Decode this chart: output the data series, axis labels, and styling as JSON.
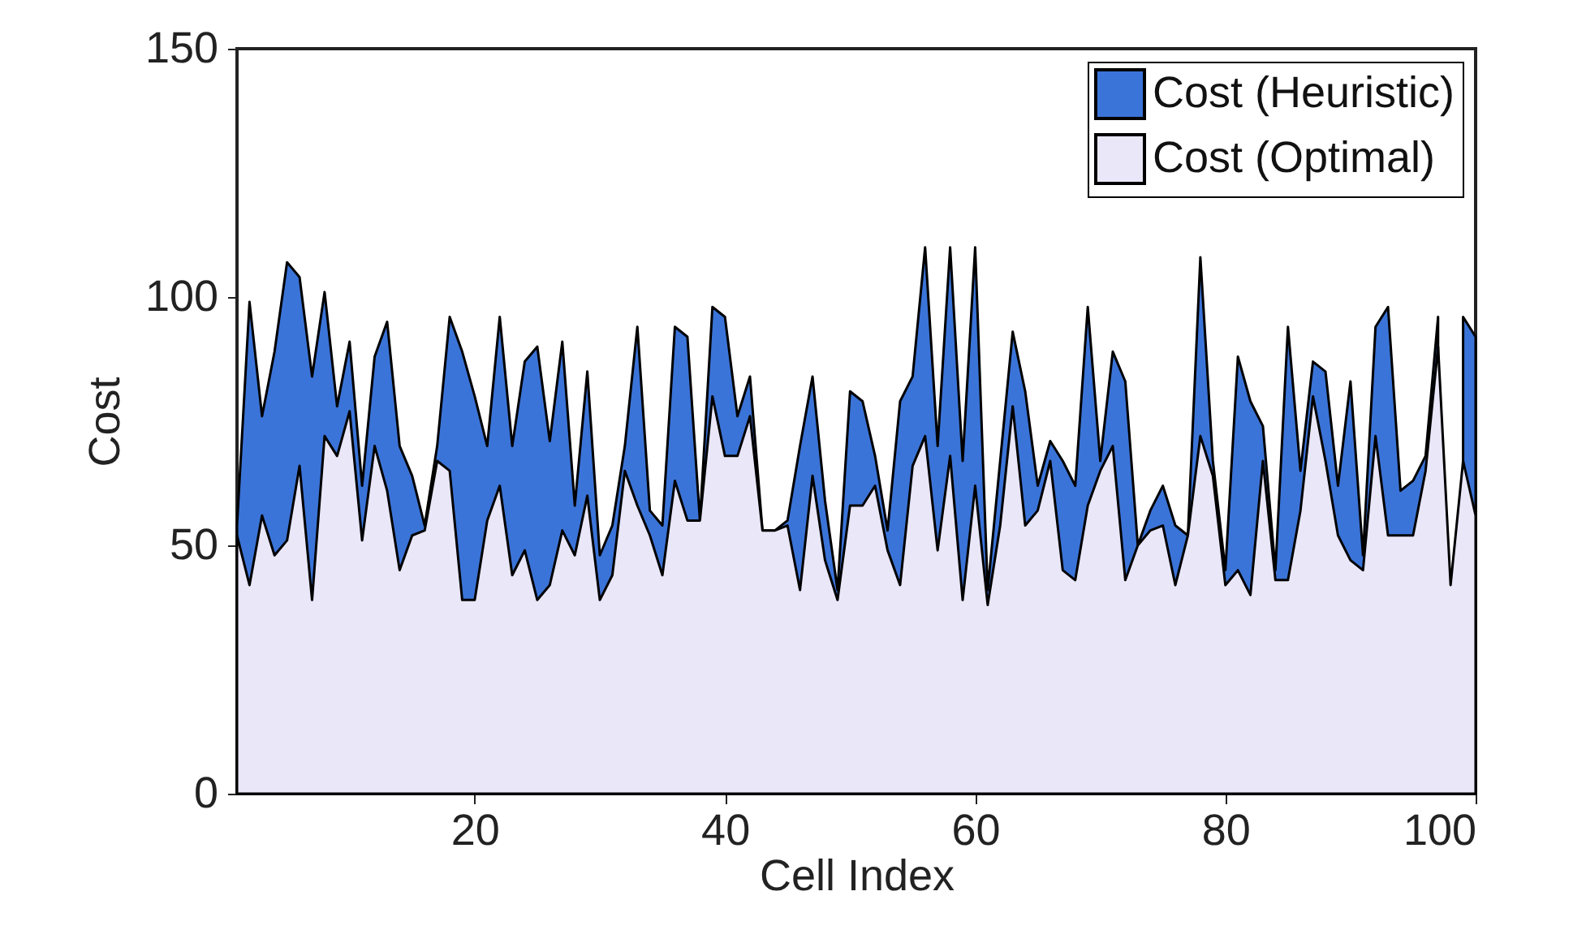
{
  "chart_data": {
    "type": "area",
    "xlabel": "Cell Index",
    "ylabel": "Cost",
    "x": [
      1,
      2,
      3,
      4,
      5,
      6,
      7,
      8,
      9,
      10,
      11,
      12,
      13,
      14,
      15,
      16,
      17,
      18,
      19,
      20,
      21,
      22,
      23,
      24,
      25,
      26,
      27,
      28,
      29,
      30,
      31,
      32,
      33,
      34,
      35,
      36,
      37,
      38,
      39,
      40,
      41,
      42,
      43,
      44,
      45,
      46,
      47,
      48,
      49,
      50,
      51,
      52,
      53,
      54,
      55,
      56,
      57,
      58,
      59,
      60,
      61,
      62,
      63,
      64,
      65,
      66,
      67,
      68,
      69,
      70,
      71,
      72,
      73,
      74,
      75,
      76,
      77,
      78,
      79,
      80,
      81,
      82,
      83,
      84,
      85,
      86,
      87,
      88,
      89,
      90,
      91,
      92,
      93,
      94,
      95,
      96,
      97,
      98,
      99,
      100
    ],
    "series": [
      {
        "name": "Cost (Heuristic)",
        "color": "#3b74d8",
        "values": [
          54,
          99,
          76,
          89,
          107,
          104,
          84,
          101,
          78,
          91,
          62,
          88,
          95,
          70,
          64,
          54,
          70,
          96,
          89,
          80,
          70,
          96,
          70,
          87,
          90,
          71,
          91,
          58,
          85,
          48,
          54,
          70,
          94,
          57,
          54,
          94,
          92,
          55,
          98,
          96,
          76,
          84,
          53,
          53,
          55,
          70,
          84,
          59,
          41,
          81,
          79,
          68,
          53,
          79,
          84,
          110,
          70,
          110,
          67,
          110,
          41,
          67,
          93,
          81,
          62,
          71,
          67,
          62,
          98,
          67,
          89,
          83,
          50,
          57,
          62,
          54,
          52,
          108,
          67,
          45,
          88,
          79,
          74,
          45,
          94,
          65,
          87,
          85,
          62,
          83,
          48,
          94,
          98,
          61,
          63,
          68,
          96,
          null,
          96,
          92
        ]
      },
      {
        "name": "Cost (Optimal)",
        "color": "#e9e7f8",
        "values": [
          52,
          42,
          56,
          48,
          51,
          66,
          39,
          72,
          68,
          77,
          51,
          70,
          61,
          45,
          52,
          53,
          67,
          65,
          39,
          39,
          55,
          62,
          44,
          49,
          39,
          42,
          53,
          48,
          60,
          39,
          44,
          65,
          58,
          52,
          44,
          63,
          55,
          55,
          80,
          68,
          68,
          76,
          53,
          53,
          54,
          41,
          64,
          47,
          39,
          58,
          58,
          62,
          49,
          42,
          66,
          72,
          49,
          68,
          39,
          62,
          38,
          54,
          78,
          54,
          57,
          67,
          45,
          43,
          58,
          65,
          70,
          43,
          50,
          53,
          54,
          42,
          52,
          72,
          64,
          42,
          45,
          40,
          67,
          43,
          43,
          57,
          80,
          67,
          52,
          47,
          45,
          72,
          52,
          52,
          52,
          65,
          90,
          42,
          67,
          56
        ]
      }
    ],
    "xlim": [
      1,
      100
    ],
    "xticks": [
      20,
      40,
      60,
      80,
      100
    ],
    "ylim": [
      0,
      150
    ],
    "yticks": [
      0,
      50,
      100,
      150
    ],
    "legend": "top right"
  }
}
